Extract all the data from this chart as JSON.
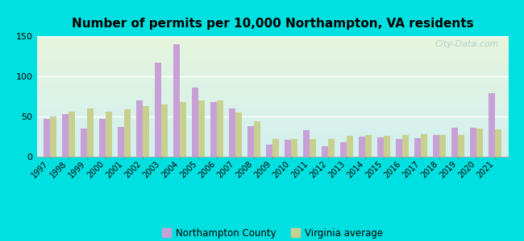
{
  "title": "Number of permits per 10,000 Northampton, VA residents",
  "years": [
    1997,
    1998,
    1999,
    2000,
    2001,
    2002,
    2003,
    2004,
    2005,
    2006,
    2007,
    2008,
    2009,
    2010,
    2011,
    2012,
    2013,
    2014,
    2015,
    2016,
    2017,
    2018,
    2019,
    2020,
    2021
  ],
  "northampton": [
    47,
    53,
    35,
    47,
    37,
    70,
    117,
    140,
    86,
    68,
    60,
    38,
    15,
    21,
    33,
    13,
    18,
    25,
    24,
    22,
    23,
    27,
    36,
    36,
    79
  ],
  "virginia": [
    50,
    56,
    60,
    56,
    59,
    63,
    65,
    68,
    70,
    70,
    55,
    44,
    22,
    22,
    22,
    22,
    26,
    27,
    26,
    27,
    28,
    27,
    27,
    35,
    34
  ],
  "northampton_color": "#c8a0d8",
  "virginia_color": "#c8d090",
  "background_outer": "#00e0e0",
  "ylim": [
    0,
    150
  ],
  "yticks": [
    0,
    50,
    100,
    150
  ],
  "watermark": "City-Data.com",
  "legend_northampton": "Northampton County",
  "legend_virginia": "Virginia average",
  "bar_width": 0.35
}
